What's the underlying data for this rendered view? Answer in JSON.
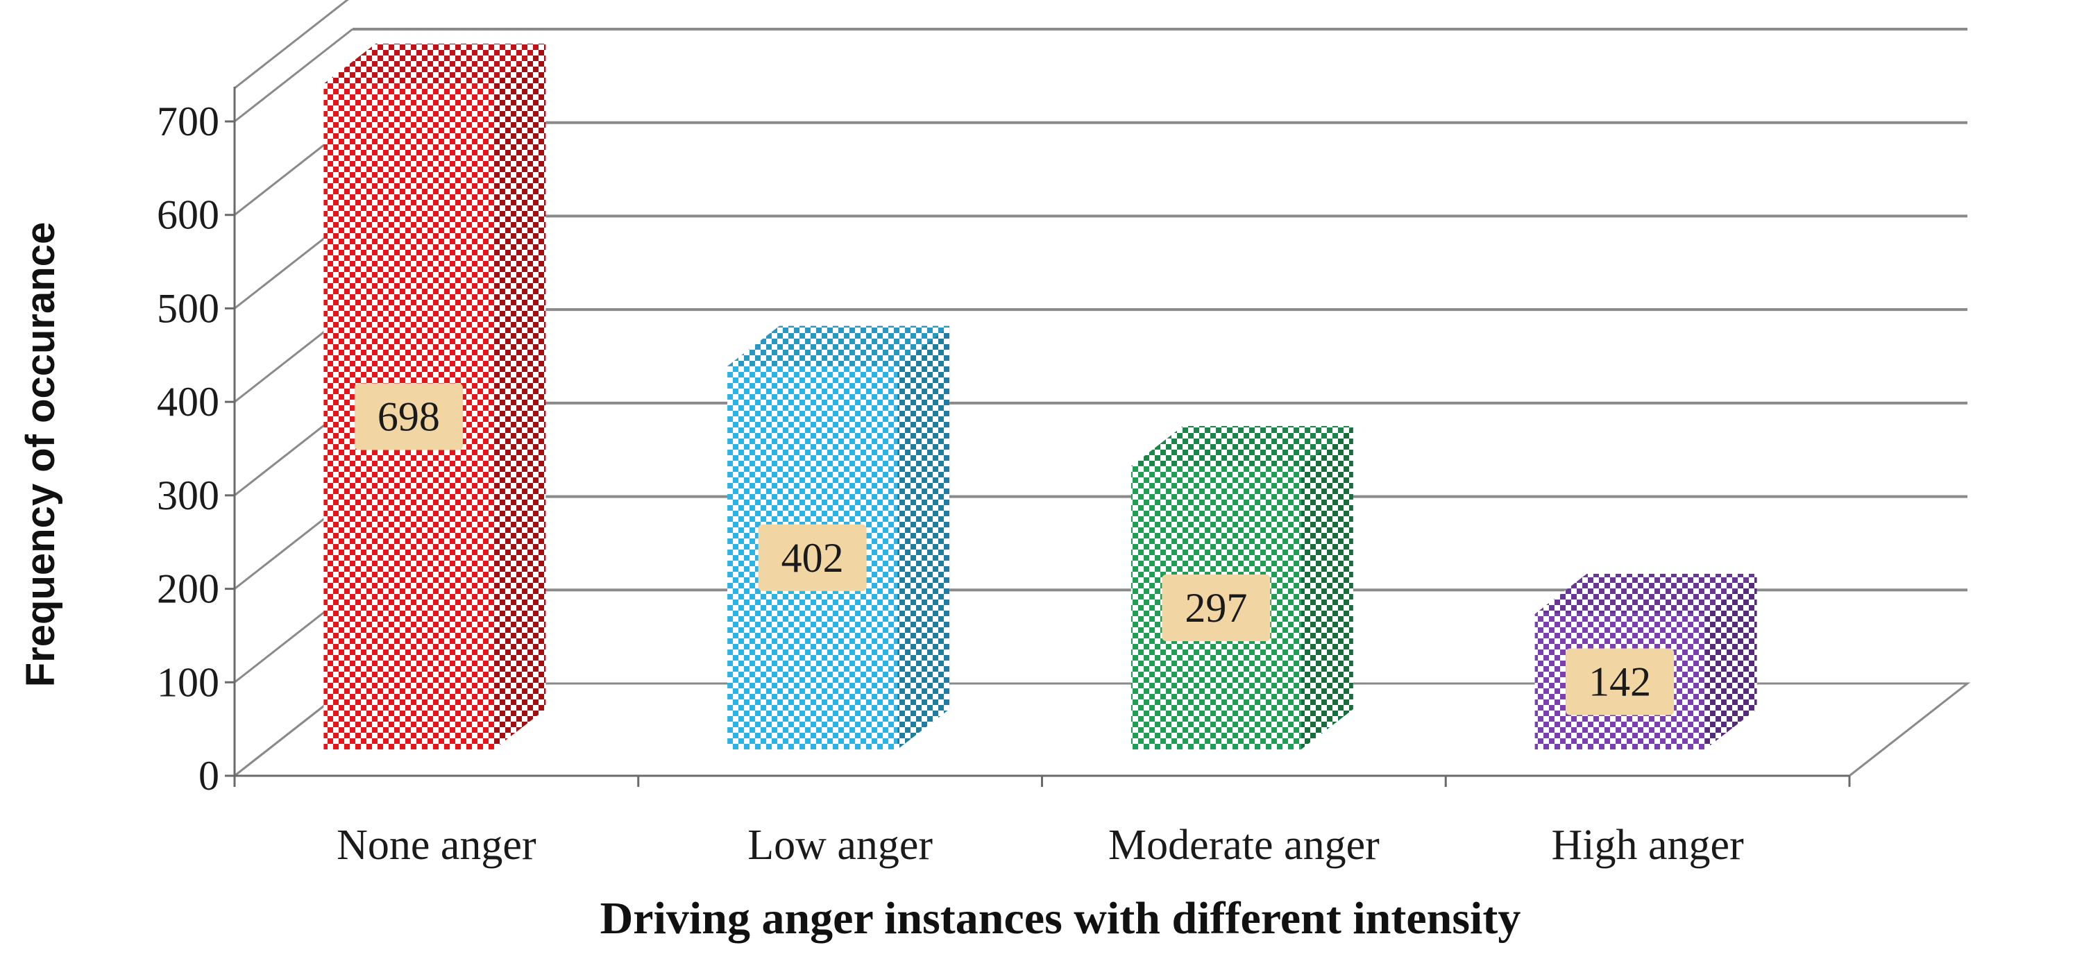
{
  "chart_data": {
    "type": "bar",
    "title": "",
    "xlabel": "Driving anger instances with different intensity",
    "ylabel": "Frequency of occurance",
    "categories": [
      "None anger",
      "Low anger",
      "Moderate anger",
      "High anger"
    ],
    "values": [
      698,
      402,
      297,
      142
    ],
    "data_labels": [
      "698",
      "402",
      "297",
      "142"
    ],
    "ylim": [
      0,
      700
    ],
    "yticks": [
      0,
      100,
      200,
      300,
      400,
      500,
      600,
      700
    ],
    "ytick_labels": [
      "0",
      "100",
      "200",
      "300",
      "400",
      "500",
      "600",
      "700"
    ],
    "grid": true,
    "bar_style": "3d-checkerboard",
    "colors": [
      "#e8141a",
      "#2cb3e6",
      "#1f9e55",
      "#7a3fb0"
    ],
    "label_box_color": "#f1d6a4"
  }
}
